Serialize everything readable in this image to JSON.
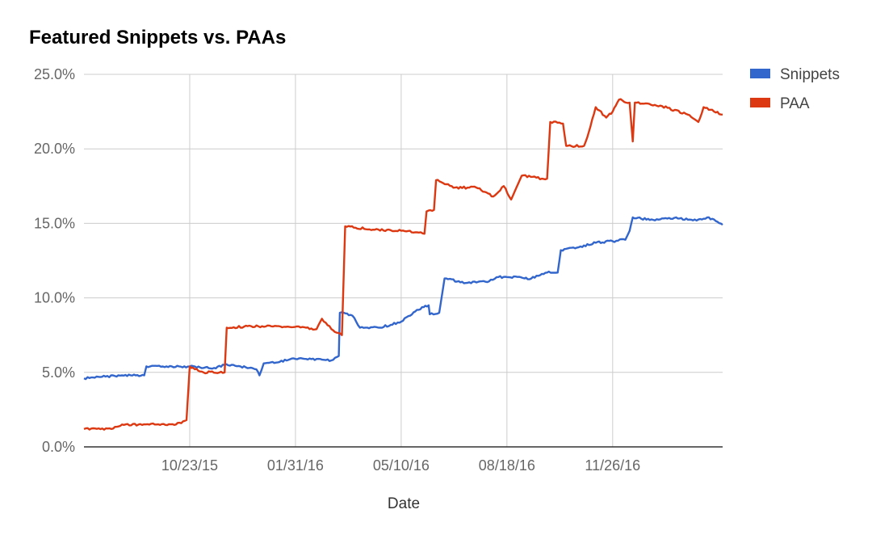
{
  "chart_data": {
    "type": "line",
    "title": "Featured Snippets vs. PAAs",
    "xlabel": "Date",
    "ylabel": "",
    "x_ticks": [
      "10/23/15",
      "01/31/16",
      "05/10/16",
      "08/18/16",
      "11/26/16"
    ],
    "y_ticks": [
      "0.0%",
      "5.0%",
      "10.0%",
      "15.0%",
      "20.0%",
      "25.0%"
    ],
    "ylim": [
      0,
      25
    ],
    "xlim": [
      "2015-07-15",
      "2017-03-10"
    ],
    "grid": true,
    "legend_position": "right",
    "series": [
      {
        "name": "Snippets",
        "color": "#3366cc",
        "points": [
          [
            "2015-07-15",
            4.6
          ],
          [
            "2015-08-01",
            4.7
          ],
          [
            "2015-08-20",
            4.8
          ],
          [
            "2015-09-10",
            4.8
          ],
          [
            "2015-09-12",
            5.4
          ],
          [
            "2015-10-01",
            5.4
          ],
          [
            "2015-10-23",
            5.4
          ],
          [
            "2015-11-15",
            5.3
          ],
          [
            "2015-11-25",
            5.5
          ],
          [
            "2015-12-10",
            5.4
          ],
          [
            "2015-12-25",
            5.2
          ],
          [
            "2015-12-28",
            4.8
          ],
          [
            "2016-01-01",
            5.6
          ],
          [
            "2016-01-31",
            5.9
          ],
          [
            "2016-02-20",
            5.9
          ],
          [
            "2016-03-05",
            5.8
          ],
          [
            "2016-03-12",
            6.1
          ],
          [
            "2016-03-13",
            9.0
          ],
          [
            "2016-03-25",
            8.8
          ],
          [
            "2016-04-01",
            8.0
          ],
          [
            "2016-04-20",
            8.0
          ],
          [
            "2016-05-10",
            8.4
          ],
          [
            "2016-05-25",
            9.2
          ],
          [
            "2016-06-05",
            9.5
          ],
          [
            "2016-06-06",
            8.9
          ],
          [
            "2016-06-15",
            9.0
          ],
          [
            "2016-06-20",
            11.3
          ],
          [
            "2016-07-10",
            11.0
          ],
          [
            "2016-08-01",
            11.1
          ],
          [
            "2016-08-10",
            11.4
          ],
          [
            "2016-08-18",
            11.4
          ],
          [
            "2016-09-10",
            11.3
          ],
          [
            "2016-09-25",
            11.7
          ],
          [
            "2016-10-05",
            11.7
          ],
          [
            "2016-10-08",
            13.2
          ],
          [
            "2016-10-25",
            13.4
          ],
          [
            "2016-11-10",
            13.7
          ],
          [
            "2016-11-26",
            13.8
          ],
          [
            "2016-12-08",
            13.9
          ],
          [
            "2016-12-12",
            14.5
          ],
          [
            "2016-12-15",
            15.4
          ],
          [
            "2017-01-05",
            15.2
          ],
          [
            "2017-01-25",
            15.4
          ],
          [
            "2017-02-10",
            15.2
          ],
          [
            "2017-02-25",
            15.4
          ],
          [
            "2017-03-10",
            14.9
          ]
        ]
      },
      {
        "name": "PAA",
        "color": "#dc3912",
        "points": [
          [
            "2015-07-15",
            1.2
          ],
          [
            "2015-08-10",
            1.2
          ],
          [
            "2015-08-20",
            1.5
          ],
          [
            "2015-09-20",
            1.5
          ],
          [
            "2015-10-10",
            1.5
          ],
          [
            "2015-10-20",
            1.8
          ],
          [
            "2015-10-23",
            5.4
          ],
          [
            "2015-11-05",
            5.0
          ],
          [
            "2015-11-25",
            5.0
          ],
          [
            "2015-11-27",
            8.0
          ],
          [
            "2015-12-20",
            8.1
          ],
          [
            "2016-01-15",
            8.1
          ],
          [
            "2016-02-10",
            8.0
          ],
          [
            "2016-02-20",
            7.9
          ],
          [
            "2016-02-25",
            8.6
          ],
          [
            "2016-03-05",
            7.9
          ],
          [
            "2016-03-15",
            7.5
          ],
          [
            "2016-03-18",
            14.8
          ],
          [
            "2016-04-10",
            14.6
          ],
          [
            "2016-05-10",
            14.5
          ],
          [
            "2016-05-25",
            14.4
          ],
          [
            "2016-06-01",
            14.3
          ],
          [
            "2016-06-03",
            15.8
          ],
          [
            "2016-06-10",
            15.9
          ],
          [
            "2016-06-12",
            17.9
          ],
          [
            "2016-06-30",
            17.4
          ],
          [
            "2016-07-20",
            17.4
          ],
          [
            "2016-08-05",
            16.8
          ],
          [
            "2016-08-15",
            17.5
          ],
          [
            "2016-08-22",
            16.6
          ],
          [
            "2016-09-01",
            18.2
          ],
          [
            "2016-09-20",
            18.0
          ],
          [
            "2016-09-25",
            18.0
          ],
          [
            "2016-09-28",
            21.8
          ],
          [
            "2016-10-10",
            21.7
          ],
          [
            "2016-10-13",
            20.2
          ],
          [
            "2016-10-30",
            20.2
          ],
          [
            "2016-11-05",
            21.5
          ],
          [
            "2016-11-10",
            22.8
          ],
          [
            "2016-11-20",
            22.1
          ],
          [
            "2016-11-26",
            22.5
          ],
          [
            "2016-12-02",
            23.3
          ],
          [
            "2016-12-12",
            23.1
          ],
          [
            "2016-12-15",
            20.5
          ],
          [
            "2016-12-17",
            23.1
          ],
          [
            "2017-01-10",
            22.9
          ],
          [
            "2017-02-05",
            22.3
          ],
          [
            "2017-02-15",
            21.8
          ],
          [
            "2017-02-20",
            22.8
          ],
          [
            "2017-03-10",
            22.3
          ]
        ]
      }
    ]
  }
}
